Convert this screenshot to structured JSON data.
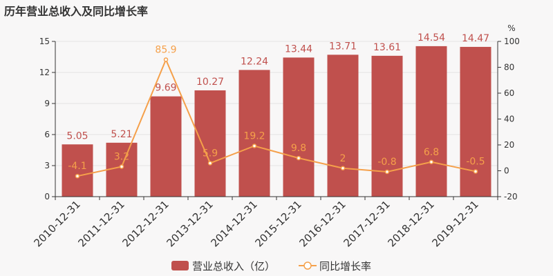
{
  "chart_data": {
    "type": "bar",
    "title": "历年营业总收入及同比增长率",
    "categories": [
      "2010-12-31",
      "2011-12-31",
      "2012-12-31",
      "2013-12-31",
      "2014-12-31",
      "2015-12-31",
      "2016-12-31",
      "2017-12-31",
      "2018-12-31",
      "2019-12-31"
    ],
    "series": [
      {
        "name": "营业总收入（亿）",
        "type": "bar",
        "axis": "left",
        "color": "#c0504d",
        "values": [
          5.05,
          5.21,
          9.69,
          10.27,
          12.24,
          13.44,
          13.71,
          13.61,
          14.54,
          14.47
        ],
        "labels": [
          "5.05",
          "5.21",
          "9.69",
          "10.27",
          "12.24",
          "13.44",
          "13.71",
          "13.61",
          "14.54",
          "14.47"
        ]
      },
      {
        "name": "同比增长率",
        "type": "line",
        "axis": "right",
        "color": "#f5a04a",
        "values": [
          -4.1,
          3.2,
          85.9,
          5.9,
          19.2,
          9.8,
          2,
          -0.8,
          6.8,
          -0.5
        ],
        "labels": [
          "-4.1",
          "3.2",
          "85.9",
          "5.9",
          "19.2",
          "9.8",
          "2",
          "-0.8",
          "6.8",
          "-0.5"
        ]
      }
    ],
    "y_left": {
      "ylim": [
        0,
        15
      ],
      "ticks": [
        0,
        3,
        6,
        9,
        12,
        15
      ]
    },
    "y_right": {
      "unit": "%",
      "ylim": [
        -20,
        100
      ],
      "ticks": [
        -20,
        0,
        20,
        40,
        60,
        80,
        100
      ]
    },
    "legend_position": "bottom",
    "grid": true
  }
}
